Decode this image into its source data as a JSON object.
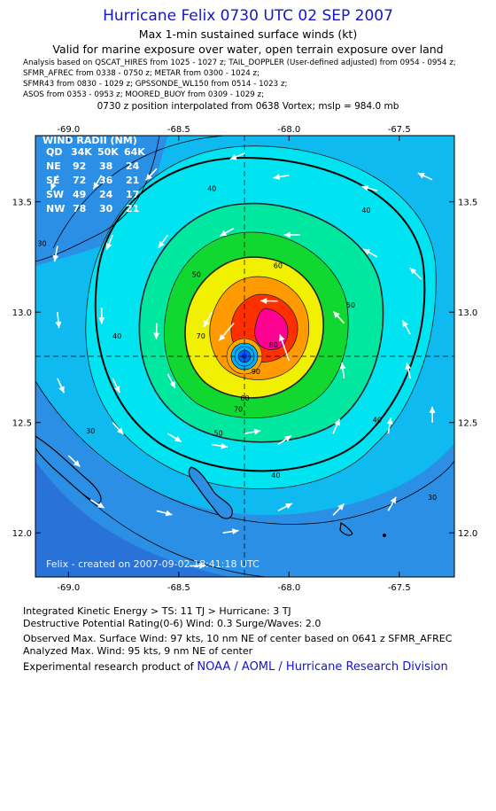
{
  "header": {
    "title": "Hurricane Felix 0730 UTC 02 SEP 2007",
    "subtitle1": "Max 1-min sustained surface winds (kt)",
    "subtitle2": "Valid for marine exposure over water, open terrain exposure over land"
  },
  "analysis_lines": [
    "Analysis based on  QSCAT_HIRES from 1025 - 1027 z;  TAIL_DOPPLER (User-defined adjusted) from 0954 - 0954 z;",
    "SFMR_AFREC from 0338 - 0750 z;  METAR from 0300 - 1024 z;",
    "SFMR43 from 0830 - 1029 z;  GPSSONDE_WL150 from 0514 - 1023 z;",
    "ASOS from 0353 - 0953 z;  MOORED_BUOY from 0309 - 1029 z;"
  ],
  "position_line": "0730 z position interpolated from 0638 Vortex; mslp = 984.0 mb",
  "map": {
    "lon_labels": [
      "-69.0",
      "-68.5",
      "-68.0",
      "-67.5"
    ],
    "lon_values": [
      -69.0,
      -68.5,
      -68.0,
      -67.5
    ],
    "lat_labels": [
      "13.5",
      "13.0",
      "12.5",
      "12.0"
    ],
    "lat_values": [
      13.5,
      13.0,
      12.5,
      12.0
    ],
    "lon_range": [
      -69.15,
      -67.25
    ],
    "lat_range": [
      11.8,
      13.8
    ],
    "center": {
      "lon": -68.15,
      "lat": 12.78
    },
    "contour_labels": [
      {
        "text": "30",
        "lon": -69.12,
        "lat": 13.3
      },
      {
        "text": "30",
        "lon": -68.9,
        "lat": 12.45
      },
      {
        "text": "30",
        "lon": -67.35,
        "lat": 12.15
      },
      {
        "text": "40",
        "lon": -68.35,
        "lat": 13.55
      },
      {
        "text": "40",
        "lon": -67.65,
        "lat": 13.45
      },
      {
        "text": "40",
        "lon": -68.78,
        "lat": 12.88
      },
      {
        "text": "40",
        "lon": -67.6,
        "lat": 12.5
      },
      {
        "text": "40",
        "lon": -68.06,
        "lat": 12.25
      },
      {
        "text": "50",
        "lon": -68.42,
        "lat": 13.16
      },
      {
        "text": "50",
        "lon": -67.72,
        "lat": 13.02
      },
      {
        "text": "50",
        "lon": -68.32,
        "lat": 12.44
      },
      {
        "text": "60",
        "lon": -68.05,
        "lat": 13.2
      },
      {
        "text": "60",
        "lon": -68.2,
        "lat": 12.6
      },
      {
        "text": "70",
        "lon": -68.4,
        "lat": 12.88
      },
      {
        "text": "70",
        "lon": -68.23,
        "lat": 12.55
      },
      {
        "text": "80",
        "lon": -68.07,
        "lat": 12.84
      },
      {
        "text": "90",
        "lon": -68.15,
        "lat": 12.72
      }
    ],
    "wind_radii": {
      "title": "WIND RADII (NM)",
      "header": [
        "QD",
        "34K",
        "50K",
        "64K"
      ],
      "rows": [
        [
          "NE",
          "92",
          "38",
          "24"
        ],
        [
          "SE",
          "72",
          "36",
          "21"
        ],
        [
          "SW",
          "49",
          "24",
          "17"
        ],
        [
          "NW",
          "78",
          "30",
          "21"
        ]
      ]
    },
    "credit": "Felix - created on 2007-09-02 18:41:18 UTC"
  },
  "footer": {
    "ike": "Integrated Kinetic Energy > TS: 11 TJ   > Hurricane: 3 TJ",
    "dpr": "Destructive Potential Rating(0-6)   Wind: 0.3 Surge/Waves: 2.0",
    "observed": "Observed Max. Surface Wind: 97 kts, 10 nm NE of center based on 0641 z SFMR_AFREC",
    "analyzed": "Analyzed Max. Wind: 95 kts, 9 nm NE of center",
    "credit_prefix": "Experimental research product of ",
    "credit_link": "NOAA / AOML / Hurricane Research Division"
  },
  "colors": {
    "title": "#1515c8",
    "ocean_weak": "#2c8fe6",
    "level_30": "#0fbaf0",
    "level_40": "#00e3f0",
    "level_50": "#00e8a0",
    "level_60": "#10d830",
    "level_70": "#f0f000",
    "level_80": "#ff9a00",
    "level_90": "#ff3000",
    "level_100": "#ff0090"
  }
}
